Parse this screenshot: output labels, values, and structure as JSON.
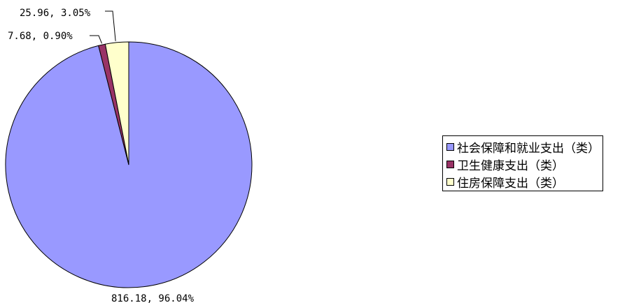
{
  "chart_data": {
    "type": "pie",
    "title": "",
    "slices": [
      {
        "name": "社会保障和就业支出（类）",
        "value": 816.18,
        "percent": "96.04%",
        "label": "816.18, 96.04%",
        "color": "#9999ff"
      },
      {
        "name": "卫生健康支出（类）",
        "value": 7.68,
        "percent": "0.90%",
        "label": "7.68, 0.90%",
        "color": "#993366"
      },
      {
        "name": "住房保障支出（类）",
        "value": 25.96,
        "percent": "3.05%",
        "label": "25.96, 3.05%",
        "color": "#ffffcc"
      }
    ],
    "legend_position": "right"
  }
}
